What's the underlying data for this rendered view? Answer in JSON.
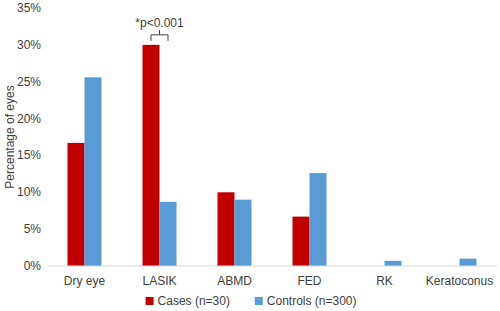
{
  "chart_data": {
    "type": "bar",
    "y_label": "Percentage of eyes",
    "categories": [
      "Dry eye",
      "LASIK",
      "ABMD",
      "FED",
      "RK",
      "Keratoconus"
    ],
    "series": [
      {
        "name": "Cases (n=30)",
        "color": "#c00000",
        "values": [
          16.7,
          30,
          10,
          6.7,
          0,
          0
        ]
      },
      {
        "name": "Controls (n=300)",
        "color": "#5b9bd5",
        "values": [
          25.6,
          8.7,
          9,
          12.6,
          0.7,
          1.0
        ]
      }
    ],
    "ylim": [
      0,
      35
    ],
    "yticks": [
      {
        "value": 0,
        "label": "0%"
      },
      {
        "value": 5,
        "label": "5%"
      },
      {
        "value": 10,
        "label": "10%"
      },
      {
        "value": 15,
        "label": "15%"
      },
      {
        "value": 20,
        "label": "20%"
      },
      {
        "value": 25,
        "label": "25%"
      },
      {
        "value": 30,
        "label": "30%"
      },
      {
        "value": 35,
        "label": "35%"
      }
    ],
    "annotations": [
      {
        "text": "*p<0.001",
        "category": "LASIK"
      }
    ],
    "grid": false,
    "legend": "bottom"
  }
}
